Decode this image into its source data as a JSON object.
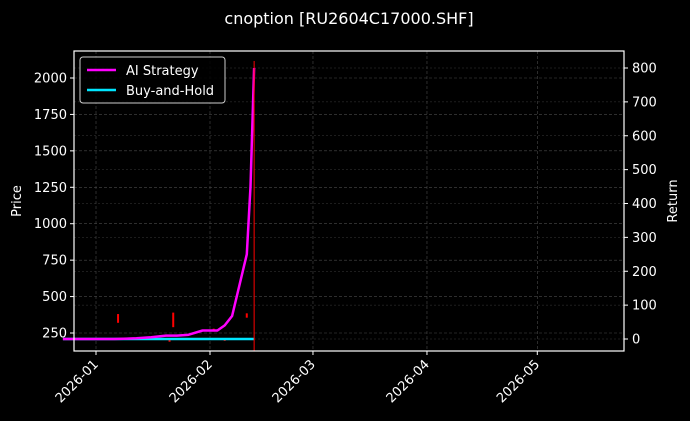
{
  "chart_data": {
    "type": "line",
    "title": "cnoption [RU2604C17000.SHF]",
    "xlabel": "",
    "ylabel": "Price",
    "ylabel_right": "Return",
    "x_ticks": [
      "2026-01",
      "2026-02",
      "2026-03",
      "2026-04",
      "2026-05"
    ],
    "y_ticks_left": [
      250,
      500,
      750,
      1000,
      1250,
      1500,
      1750,
      2000
    ],
    "y_ticks_right": [
      0,
      100,
      200,
      300,
      400,
      500,
      600,
      700,
      800
    ],
    "ylim_left": [
      130,
      2180
    ],
    "ylim_right": [
      -35,
      845
    ],
    "grid": true,
    "legend_position": "upper left",
    "vline": {
      "x": "2026-02-13",
      "color": "#ff0000"
    },
    "series": [
      {
        "name": "AI Strategy",
        "color": "#ff00ff",
        "axis": "right",
        "x": [
          "2025-12-23",
          "2026-01-06",
          "2026-01-12",
          "2026-01-16",
          "2026-01-20",
          "2026-01-23",
          "2026-01-26",
          "2026-01-30",
          "2026-02-03",
          "2026-02-05",
          "2026-02-07",
          "2026-02-11",
          "2026-02-12",
          "2026-02-13"
        ],
        "values": [
          0,
          0,
          2,
          5,
          10,
          10,
          12,
          25,
          25,
          40,
          68,
          250,
          450,
          800
        ]
      },
      {
        "name": "Buy-and-Hold",
        "color": "#00e5ff",
        "axis": "right",
        "x": [
          "2025-12-23",
          "2026-01-15",
          "2026-02-01",
          "2026-02-13"
        ],
        "values": [
          0,
          0,
          0,
          0
        ]
      }
    ],
    "candles_approx": {
      "color": "#ff0000",
      "note": "sparse red price marks near 200-400 range, left axis",
      "points": [
        {
          "x": "2026-01-07",
          "low": 320,
          "high": 380
        },
        {
          "x": "2026-01-21",
          "low": 190,
          "high": 205
        },
        {
          "x": "2026-01-22",
          "low": 290,
          "high": 390
        },
        {
          "x": "2026-02-02",
          "low": 260,
          "high": 280
        },
        {
          "x": "2026-02-05",
          "low": 200,
          "high": 210
        },
        {
          "x": "2026-02-11",
          "low": 355,
          "high": 385
        }
      ]
    }
  },
  "legend": {
    "items": [
      {
        "label": "AI Strategy",
        "color": "#ff00ff"
      },
      {
        "label": "Buy-and-Hold",
        "color": "#00e5ff"
      }
    ]
  },
  "colors": {
    "background": "#000000",
    "axes": "#ffffff",
    "grid": "#555555",
    "vline": "#ff0000"
  }
}
